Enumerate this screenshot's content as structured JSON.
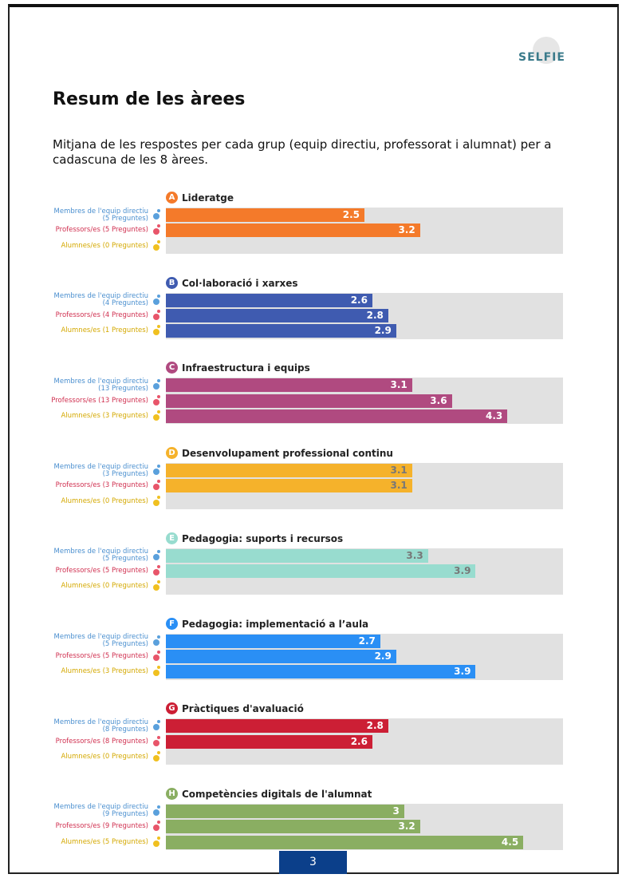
{
  "logo": "SELFIE",
  "title": "Resum de les àrees",
  "subtitle": "Mitjana de les respostes per cada grup (equip directiu, professorat i alumnat) per a cadascuna de les 8 àrees.",
  "xlim": [
    0,
    5
  ],
  "areas": [
    {
      "letter": "A",
      "title": "Lideratge",
      "color": "#f47a2a",
      "groups": [
        {
          "label": "Membres de l'equip directiu (5 Preguntes)",
          "value": 2.5
        },
        {
          "label": "Professors/es (5 Preguntes)",
          "value": 3.2
        },
        {
          "label": "Alumnes/es (0 Preguntes)",
          "value": null
        }
      ]
    },
    {
      "letter": "B",
      "title": "Col·laboració i xarxes",
      "color": "#3f5bb0",
      "groups": [
        {
          "label": "Membres de l'equip directiu (4 Preguntes)",
          "value": 2.6
        },
        {
          "label": "Professors/es (4 Preguntes)",
          "value": 2.8
        },
        {
          "label": "Alumnes/es (1 Preguntes)",
          "value": 2.9
        }
      ]
    },
    {
      "letter": "C",
      "title": "Infraestructura i equips",
      "color": "#b04a80",
      "groups": [
        {
          "label": "Membres de l'equip directiu (13 Preguntes)",
          "value": 3.1
        },
        {
          "label": "Professors/es (13 Preguntes)",
          "value": 3.6
        },
        {
          "label": "Alumnes/es (3 Preguntes)",
          "value": 4.3
        }
      ]
    },
    {
      "letter": "D",
      "title": "Desenvolupament professional continu",
      "color": "#f5b22b",
      "groups": [
        {
          "label": "Membres de l'equip directiu (3 Preguntes)",
          "value": 3.1
        },
        {
          "label": "Professors/es (3 Preguntes)",
          "value": 3.1
        },
        {
          "label": "Alumnes/es (0 Preguntes)",
          "value": null
        }
      ]
    },
    {
      "letter": "E",
      "title": "Pedagogia: suports i recursos",
      "color": "#98dccf",
      "groups": [
        {
          "label": "Membres de l'equip directiu (5 Preguntes)",
          "value": 3.3
        },
        {
          "label": "Professors/es (5 Preguntes)",
          "value": 3.9
        },
        {
          "label": "Alumnes/es (0 Preguntes)",
          "value": null
        }
      ]
    },
    {
      "letter": "F",
      "title": "Pedagogia: implementació a l’aula",
      "color": "#2a8ff5",
      "groups": [
        {
          "label": "Membres de l'equip directiu (5 Preguntes)",
          "value": 2.7
        },
        {
          "label": "Professors/es (5 Preguntes)",
          "value": 2.9
        },
        {
          "label": "Alumnes/es (3 Preguntes)",
          "value": 3.9
        }
      ]
    },
    {
      "letter": "G",
      "title": "Pràctiques d'avaluació",
      "color": "#cc1f35",
      "groups": [
        {
          "label": "Membres de l'equip directiu (8 Preguntes)",
          "value": 2.8
        },
        {
          "label": "Professors/es (8 Preguntes)",
          "value": 2.6
        },
        {
          "label": "Alumnes/es (0 Preguntes)",
          "value": null
        }
      ]
    },
    {
      "letter": "H",
      "title": "Competències digitals de l'alumnat",
      "color": "#8aae62",
      "groups": [
        {
          "label": "Membres de l'equip directiu (9 Preguntes)",
          "value": 3
        },
        {
          "label": "Professors/es (9 Preguntes)",
          "value": 3.2
        },
        {
          "label": "Alumnes/es (5 Preguntes)",
          "value": 4.5
        }
      ]
    }
  ],
  "page_number": "3"
}
